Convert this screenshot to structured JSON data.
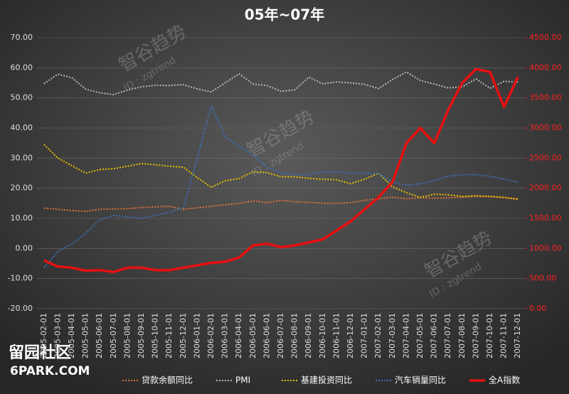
{
  "chart_data": {
    "type": "line",
    "title": "05年~07年",
    "categories": [
      "2005-02-01",
      "2005-03-01",
      "2005-04-01",
      "2005-05-01",
      "2005-06-01",
      "2005-07-01",
      "2005-08-01",
      "2005-09-01",
      "2005-10-01",
      "2005-11-01",
      "2005-12-01",
      "2006-01-01",
      "2006-02-01",
      "2006-03-01",
      "2006-04-01",
      "2006-05-01",
      "2006-06-01",
      "2006-07-01",
      "2006-08-01",
      "2006-09-01",
      "2006-10-01",
      "2006-11-01",
      "2006-12-01",
      "2007-01-01",
      "2007-02-01",
      "2007-03-01",
      "2007-04-01",
      "2007-05-01",
      "2007-06-01",
      "2007-07-01",
      "2007-08-01",
      "2007-09-01",
      "2007-10-01",
      "2007-11-01",
      "2007-12-01"
    ],
    "series": [
      {
        "name": "贷款余额同比",
        "color": "#e0743a",
        "values": [
          13.4,
          13.0,
          12.6,
          12.3,
          13.0,
          13.1,
          13.2,
          13.6,
          13.8,
          14.0,
          13.0,
          13.5,
          14.0,
          14.5,
          15.0,
          15.8,
          15.2,
          16.0,
          15.5,
          15.3,
          15.0,
          15.0,
          15.2,
          16.0,
          16.5,
          17.0,
          16.5,
          16.8,
          16.7,
          16.8,
          17.0,
          17.3,
          17.2,
          16.8,
          16.5
        ]
      },
      {
        "name": "PMI",
        "color": "#b8b8b8",
        "values": [
          54.7,
          57.9,
          56.7,
          52.9,
          51.7,
          51.1,
          52.6,
          53.7,
          54.2,
          54.1,
          54.4,
          53.0,
          52.0,
          55.0,
          58.0,
          54.6,
          54.1,
          52.2,
          52.7,
          56.9,
          54.7,
          55.3,
          55.0,
          54.5,
          53.1,
          56.1,
          58.6,
          55.8,
          54.6,
          53.3,
          53.7,
          56.3,
          53.2,
          55.5,
          55.3
        ]
      },
      {
        "name": "基建投资同比",
        "color": "#e8c000",
        "values": [
          34.5,
          30.0,
          27.5,
          25.0,
          26.2,
          26.5,
          27.3,
          28.2,
          27.8,
          27.3,
          27.0,
          23.5,
          20.3,
          22.5,
          23.2,
          25.5,
          25.2,
          23.8,
          23.8,
          23.3,
          23.0,
          22.8,
          21.5,
          23.0,
          25.0,
          20.5,
          18.5,
          17.0,
          18.0,
          17.8,
          17.3,
          17.5,
          17.3,
          17.0,
          16.3
        ]
      },
      {
        "name": "汽车销量同比",
        "color": "#3b6fb6",
        "values": [
          -6.5,
          -1.0,
          1.5,
          5.0,
          9.5,
          11.0,
          10.5,
          10.0,
          11.0,
          12.0,
          13.5,
          30.0,
          47.5,
          37.0,
          34.0,
          31.0,
          27.0,
          25.0,
          24.5,
          24.5,
          25.5,
          25.5,
          25.0,
          25.0,
          25.0,
          22.0,
          21.0,
          21.5,
          22.5,
          24.0,
          24.5,
          24.5,
          24.0,
          23.0,
          22.0
        ]
      },
      {
        "name": "全A指数",
        "color": "#e81010",
        "axis": "y2",
        "values": [
          800,
          700,
          680,
          630,
          640,
          610,
          680,
          680,
          640,
          640,
          680,
          720,
          760,
          780,
          850,
          1050,
          1080,
          1020,
          1050,
          1100,
          1150,
          1300,
          1450,
          1650,
          1850,
          2100,
          2750,
          3000,
          2750,
          3300,
          3750,
          3980,
          3930,
          3350,
          3850
        ]
      }
    ],
    "ylim": [
      -20,
      70
    ],
    "yticks": [
      {
        "value": -20,
        "label": "-20.00"
      },
      {
        "value": -10,
        "label": "-10.00"
      },
      {
        "value": 0,
        "label": "0.00"
      },
      {
        "value": 10,
        "label": "10.00"
      },
      {
        "value": 20,
        "label": "20.00"
      },
      {
        "value": 30,
        "label": "30.00"
      },
      {
        "value": 40,
        "label": "40.00"
      },
      {
        "value": 50,
        "label": "50.00"
      },
      {
        "value": 60,
        "label": "60.00"
      },
      {
        "value": 70,
        "label": "70.00"
      }
    ],
    "y2lim": [
      0,
      4500
    ],
    "y2ticks": [
      {
        "value": 0,
        "label": "0.00"
      },
      {
        "value": 500,
        "label": "500.00"
      },
      {
        "value": 1000,
        "label": "1000.00"
      },
      {
        "value": 1500,
        "label": "1500.00"
      },
      {
        "value": 2000,
        "label": "2000.00"
      },
      {
        "value": 2500,
        "label": "2500.00"
      },
      {
        "value": 3000,
        "label": "3000.00"
      },
      {
        "value": 3500,
        "label": "3500.00"
      },
      {
        "value": 4000,
        "label": "4000.00"
      },
      {
        "value": 4500,
        "label": "4500.00"
      }
    ],
    "grid": true,
    "legend": "bottom",
    "watermark": "智谷趋势",
    "watermark_id": "ID : zgtrend",
    "logo_cn": "留园社区",
    "logo_en": "6PARK.COM"
  }
}
